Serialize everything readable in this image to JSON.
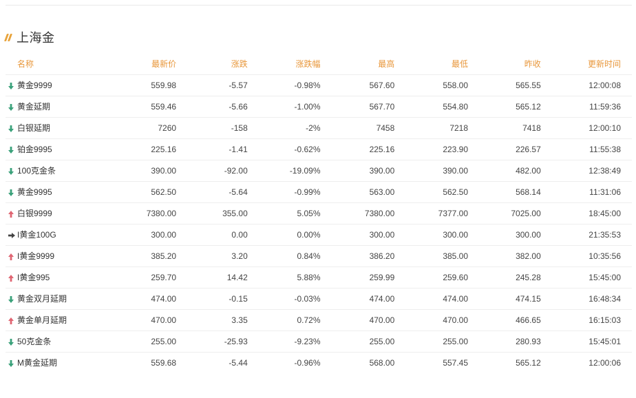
{
  "section": {
    "title": "上海金"
  },
  "colors": {
    "accent": "#e8a33b",
    "header_text": "#e8973b",
    "up": "#e06572",
    "down": "#3aa17a",
    "flat": "#444444"
  },
  "table": {
    "headers": {
      "name": "名称",
      "price": "最新价",
      "change": "涨跌",
      "pct": "涨跌幅",
      "high": "最高",
      "low": "最低",
      "prev": "昨收",
      "time": "更新时间"
    },
    "rows": [
      {
        "trend": "down",
        "name": "黄金9999",
        "price": "559.98",
        "change": "-5.57",
        "pct": "-0.98%",
        "high": "567.60",
        "low": "558.00",
        "prev": "565.55",
        "time": "12:00:08"
      },
      {
        "trend": "down",
        "name": "黄金延期",
        "price": "559.46",
        "change": "-5.66",
        "pct": "-1.00%",
        "high": "567.70",
        "low": "554.80",
        "prev": "565.12",
        "time": "11:59:36"
      },
      {
        "trend": "down",
        "name": "白银延期",
        "price": "7260",
        "change": "-158",
        "pct": "-2%",
        "high": "7458",
        "low": "7218",
        "prev": "7418",
        "time": "12:00:10"
      },
      {
        "trend": "down",
        "name": "铂金9995",
        "price": "225.16",
        "change": "-1.41",
        "pct": "-0.62%",
        "high": "225.16",
        "low": "223.90",
        "prev": "226.57",
        "time": "11:55:38"
      },
      {
        "trend": "down",
        "name": "100克金条",
        "price": "390.00",
        "change": "-92.00",
        "pct": "-19.09%",
        "high": "390.00",
        "low": "390.00",
        "prev": "482.00",
        "time": "12:38:49"
      },
      {
        "trend": "down",
        "name": "黄金9995",
        "price": "562.50",
        "change": "-5.64",
        "pct": "-0.99%",
        "high": "563.00",
        "low": "562.50",
        "prev": "568.14",
        "time": "11:31:06"
      },
      {
        "trend": "up",
        "name": "白银9999",
        "price": "7380.00",
        "change": "355.00",
        "pct": "5.05%",
        "high": "7380.00",
        "low": "7377.00",
        "prev": "7025.00",
        "time": "18:45:00"
      },
      {
        "trend": "flat",
        "name": "I黄金100G",
        "price": "300.00",
        "change": "0.00",
        "pct": "0.00%",
        "high": "300.00",
        "low": "300.00",
        "prev": "300.00",
        "time": "21:35:53"
      },
      {
        "trend": "up",
        "name": "I黄金9999",
        "price": "385.20",
        "change": "3.20",
        "pct": "0.84%",
        "high": "386.20",
        "low": "385.00",
        "prev": "382.00",
        "time": "10:35:56"
      },
      {
        "trend": "up",
        "name": "I黄金995",
        "price": "259.70",
        "change": "14.42",
        "pct": "5.88%",
        "high": "259.99",
        "low": "259.60",
        "prev": "245.28",
        "time": "15:45:00"
      },
      {
        "trend": "down",
        "name": "黄金双月延期",
        "price": "474.00",
        "change": "-0.15",
        "pct": "-0.03%",
        "high": "474.00",
        "low": "474.00",
        "prev": "474.15",
        "time": "16:48:34"
      },
      {
        "trend": "up",
        "name": "黄金单月延期",
        "price": "470.00",
        "change": "3.35",
        "pct": "0.72%",
        "high": "470.00",
        "low": "470.00",
        "prev": "466.65",
        "time": "16:15:03"
      },
      {
        "trend": "down",
        "name": "50克金条",
        "price": "255.00",
        "change": "-25.93",
        "pct": "-9.23%",
        "high": "255.00",
        "low": "255.00",
        "prev": "280.93",
        "time": "15:45:01"
      },
      {
        "trend": "down",
        "name": "M黄金延期",
        "price": "559.68",
        "change": "-5.44",
        "pct": "-0.96%",
        "high": "568.00",
        "low": "557.45",
        "prev": "565.12",
        "time": "12:00:06"
      }
    ]
  }
}
